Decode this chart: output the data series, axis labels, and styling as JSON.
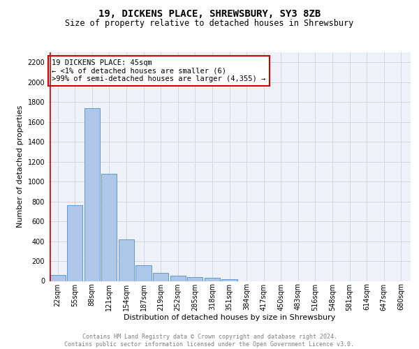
{
  "title": "19, DICKENS PLACE, SHREWSBURY, SY3 8ZB",
  "subtitle": "Size of property relative to detached houses in Shrewsbury",
  "xlabel": "Distribution of detached houses by size in Shrewsbury",
  "ylabel": "Number of detached properties",
  "bar_values": [
    60,
    760,
    1740,
    1075,
    415,
    155,
    80,
    50,
    40,
    30,
    20,
    0,
    0,
    0,
    0,
    0,
    0,
    0,
    0,
    0,
    0
  ],
  "categories": [
    "22sqm",
    "55sqm",
    "88sqm",
    "121sqm",
    "154sqm",
    "187sqm",
    "219sqm",
    "252sqm",
    "285sqm",
    "318sqm",
    "351sqm",
    "384sqm",
    "417sqm",
    "450sqm",
    "483sqm",
    "516sqm",
    "548sqm",
    "581sqm",
    "614sqm",
    "647sqm",
    "680sqm"
  ],
  "bar_color": "#aec6e8",
  "bar_edge_color": "#5b9bd5",
  "annotation_line1": "19 DICKENS PLACE: 45sqm",
  "annotation_line2": "← <1% of detached houses are smaller (6)",
  "annotation_line3": ">99% of semi-detached houses are larger (4,355) →",
  "annotation_box_color": "white",
  "annotation_box_edge_color": "#cc0000",
  "vline_color": "#cc0000",
  "ylim": [
    0,
    2300
  ],
  "yticks": [
    0,
    200,
    400,
    600,
    800,
    1000,
    1200,
    1400,
    1600,
    1800,
    2000,
    2200
  ],
  "grid_color": "#d0d8e8",
  "background_color": "#eef2f8",
  "footer_line1": "Contains HM Land Registry data © Crown copyright and database right 2024.",
  "footer_line2": "Contains public sector information licensed under the Open Government Licence v3.0.",
  "title_fontsize": 10,
  "subtitle_fontsize": 8.5,
  "xlabel_fontsize": 8,
  "ylabel_fontsize": 8,
  "tick_fontsize": 7,
  "annot_fontsize": 7.5,
  "footer_fontsize": 6
}
